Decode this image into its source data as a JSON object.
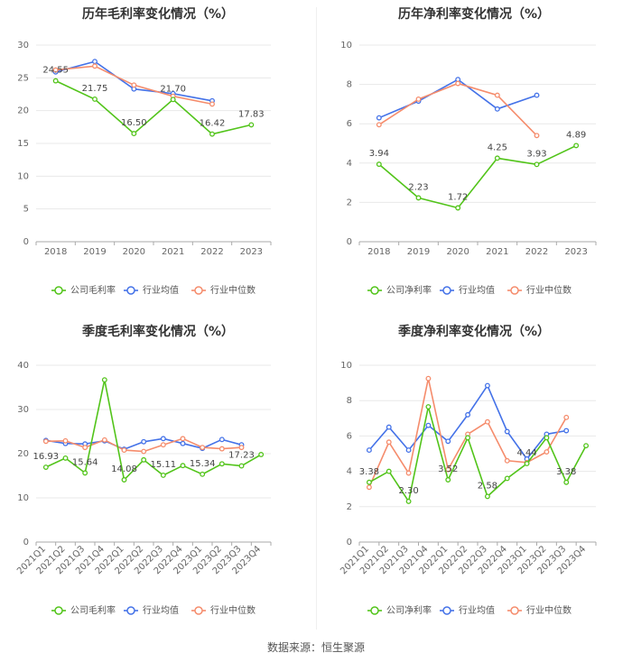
{
  "colors": {
    "series": [
      "#52c41a",
      "#4472e8",
      "#f58c6c"
    ]
  },
  "footer": {
    "source": "数据来源：恒生聚源"
  },
  "chart_data": [
    {
      "type": "line",
      "title": "历年毛利率变化情况（%）",
      "categories": [
        "2018",
        "2019",
        "2020",
        "2021",
        "2022",
        "2023"
      ],
      "ylim": [
        0,
        30
      ],
      "yticks": [
        0,
        5,
        10,
        15,
        20,
        25,
        30
      ],
      "series": [
        {
          "name": "公司毛利率",
          "values": [
            24.55,
            21.75,
            16.5,
            21.7,
            16.42,
            17.83
          ]
        },
        {
          "name": "行业均值",
          "values": [
            25.9,
            27.5,
            23.3,
            22.6,
            21.5,
            null
          ]
        },
        {
          "name": "行业中位数",
          "values": [
            26.2,
            26.8,
            23.9,
            22.2,
            21.0,
            null
          ]
        }
      ],
      "labels": [
        "24.55",
        "21.75",
        "16.50",
        "21.70",
        "16.42",
        "17.83"
      ],
      "legend": "bottom"
    },
    {
      "type": "line",
      "title": "历年净利率变化情况（%）",
      "categories": [
        "2018",
        "2019",
        "2020",
        "2021",
        "2022",
        "2023"
      ],
      "ylim": [
        0,
        10
      ],
      "yticks": [
        0,
        2,
        4,
        6,
        8,
        10
      ],
      "series": [
        {
          "name": "公司净利率",
          "values": [
            3.94,
            2.23,
            1.72,
            4.25,
            3.93,
            4.89
          ]
        },
        {
          "name": "行业均值",
          "values": [
            6.3,
            7.15,
            8.25,
            6.75,
            7.45,
            null
          ]
        },
        {
          "name": "行业中位数",
          "values": [
            5.95,
            7.25,
            8.05,
            7.45,
            5.4,
            null
          ]
        }
      ],
      "labels": [
        "3.94",
        "2.23",
        "1.72",
        "4.25",
        "3.93",
        "4.89"
      ],
      "legend": "bottom"
    },
    {
      "type": "line",
      "title": "季度毛利率变化情况（%）",
      "categories": [
        "2021Q1",
        "2021Q2",
        "2021Q3",
        "2021Q4",
        "2022Q1",
        "2022Q2",
        "2022Q3",
        "2022Q4",
        "2023Q1",
        "2023Q2",
        "2023Q3",
        "2023Q4"
      ],
      "ylim": [
        0,
        40
      ],
      "yticks": [
        0,
        10,
        20,
        30,
        40
      ],
      "series": [
        {
          "name": "公司毛利率",
          "values": [
            16.93,
            19.0,
            15.64,
            36.7,
            14.08,
            18.6,
            15.11,
            17.3,
            15.34,
            17.7,
            17.23,
            19.8
          ]
        },
        {
          "name": "行业均值",
          "values": [
            23.0,
            22.3,
            22.2,
            22.9,
            21.0,
            22.7,
            23.4,
            22.3,
            21.2,
            23.2,
            22.0,
            null
          ]
        },
        {
          "name": "行业中位数",
          "values": [
            22.8,
            22.9,
            21.4,
            23.1,
            20.8,
            20.5,
            22.0,
            23.4,
            21.4,
            21.1,
            21.4,
            null
          ]
        }
      ],
      "labels": [
        "16.93",
        "",
        "15.64",
        "",
        "14.08",
        "",
        "15.11",
        "",
        "15.34",
        "",
        "17.23",
        ""
      ],
      "legend": "bottom"
    },
    {
      "type": "line",
      "title": "季度净利率变化情况（%）",
      "categories": [
        "2021Q1",
        "2021Q2",
        "2021Q3",
        "2021Q4",
        "2022Q1",
        "2022Q2",
        "2022Q3",
        "2022Q4",
        "2023Q1",
        "2023Q2",
        "2023Q3",
        "2023Q4"
      ],
      "ylim": [
        0,
        10
      ],
      "yticks": [
        0,
        2,
        4,
        6,
        8,
        10
      ],
      "series": [
        {
          "name": "公司净利率",
          "values": [
            3.38,
            4.0,
            2.3,
            7.65,
            3.52,
            5.9,
            2.58,
            3.6,
            4.44,
            5.9,
            3.38,
            5.45
          ]
        },
        {
          "name": "行业均值",
          "values": [
            5.2,
            6.5,
            5.2,
            6.6,
            5.7,
            7.2,
            8.85,
            6.25,
            4.7,
            6.1,
            6.3,
            null
          ]
        },
        {
          "name": "行业中位数",
          "values": [
            3.1,
            5.65,
            3.9,
            9.25,
            4.1,
            6.1,
            6.8,
            4.6,
            4.5,
            5.1,
            7.05,
            null
          ]
        }
      ],
      "labels": [
        "3.38",
        "",
        "2.30",
        "",
        "3.52",
        "",
        "2.58",
        "",
        "4.44",
        "",
        "3.38",
        ""
      ],
      "legend": "bottom"
    }
  ]
}
